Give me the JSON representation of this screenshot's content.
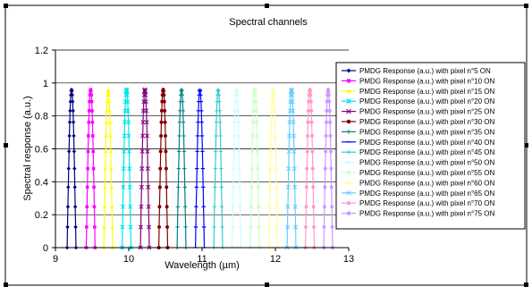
{
  "chart_data": {
    "type": "line",
    "title": "Spectral channels",
    "xlabel": "Wavelength (µm)",
    "ylabel": "Spectral response (a.u.)",
    "xlim": [
      9,
      13
    ],
    "ylim": [
      0,
      1.2
    ],
    "x_ticks": [
      "9",
      "10",
      "11",
      "12",
      "13"
    ],
    "y_ticks": [
      "0",
      "0.2",
      "0.4",
      "0.6",
      "0.8",
      "1",
      "1.2"
    ],
    "grid": "horizontal",
    "legend_position": "right",
    "peak_value": 0.96,
    "series": [
      {
        "name": "PMDG Response (a.u.) with pixel n°5 ON",
        "center": 9.22,
        "color": "#000080",
        "marker": "diamond"
      },
      {
        "name": "PMDG Response (a.u.) with pixel n°10 ON",
        "center": 9.48,
        "color": "#FF00FF",
        "marker": "square"
      },
      {
        "name": "PMDG Response (a.u.) with pixel n°15 ON",
        "center": 9.72,
        "color": "#FFFF00",
        "marker": "triangle"
      },
      {
        "name": "PMDG Response (a.u.) with pixel n°20 ON",
        "center": 9.97,
        "color": "#00E5E5",
        "marker": "cross"
      },
      {
        "name": "PMDG Response (a.u.) with pixel n°25 ON",
        "center": 10.22,
        "color": "#800080",
        "marker": "x"
      },
      {
        "name": "PMDG Response (a.u.) with pixel n°30 ON",
        "center": 10.47,
        "color": "#800000",
        "marker": "circle"
      },
      {
        "name": "PMDG Response (a.u.) with pixel n°35 ON",
        "center": 10.72,
        "color": "#008080",
        "marker": "plus"
      },
      {
        "name": "PMDG Response (a.u.) with pixel n°40 ON",
        "center": 10.97,
        "color": "#0000FF",
        "marker": "dash"
      },
      {
        "name": "PMDG Response (a.u.) with pixel n°45 ON",
        "center": 11.22,
        "color": "#33CCCC",
        "marker": "plus"
      },
      {
        "name": "PMDG Response (a.u.) with pixel n°50 ON",
        "center": 11.47,
        "color": "#CCFFFF",
        "marker": "diamond"
      },
      {
        "name": "PMDG Response (a.u.) with pixel n°55 ON",
        "center": 11.72,
        "color": "#CCFFCC",
        "marker": "square"
      },
      {
        "name": "PMDG Response (a.u.) with pixel n°60 ON",
        "center": 11.97,
        "color": "#FFFF99",
        "marker": "triangle"
      },
      {
        "name": "PMDG Response (a.u.) with pixel n°65 ON",
        "center": 12.22,
        "color": "#66CCFF",
        "marker": "x"
      },
      {
        "name": "PMDG Response (a.u.) with pixel n°70 ON",
        "center": 12.47,
        "color": "#FF99CC",
        "marker": "circle"
      },
      {
        "name": "PMDG Response (a.u.) with pixel n°75 ON",
        "center": 12.72,
        "color": "#CC99FF",
        "marker": "circle"
      }
    ]
  }
}
